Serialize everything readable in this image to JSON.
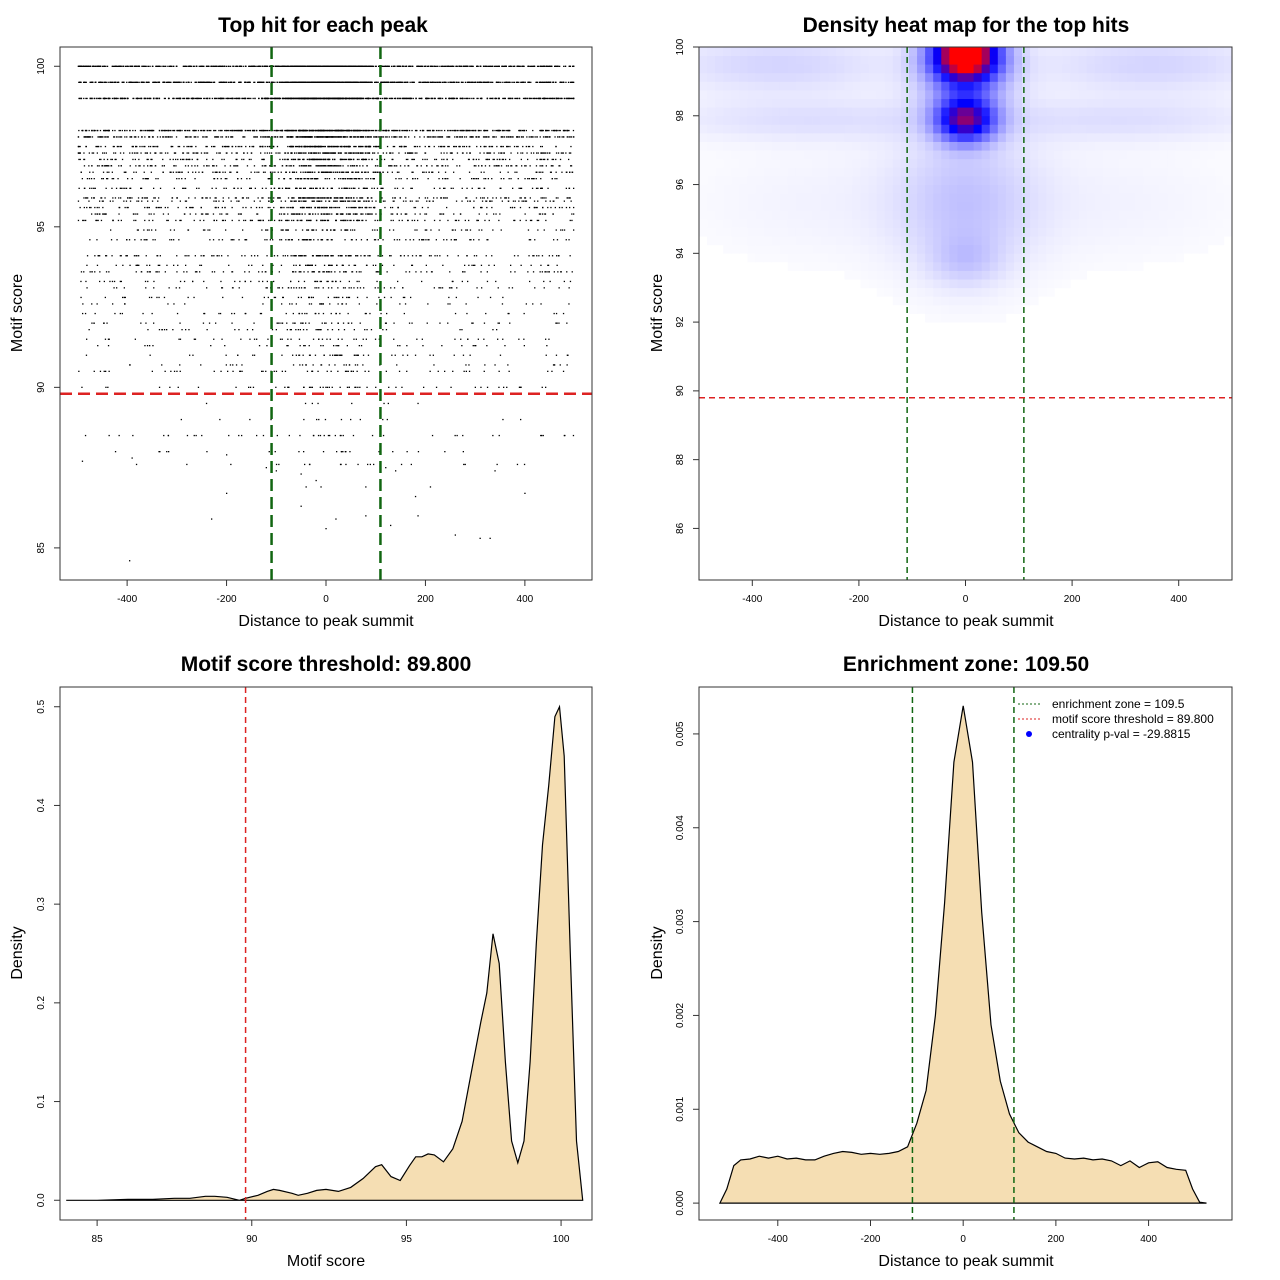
{
  "colors": {
    "threshold": "#dd2222",
    "zone": "#116611",
    "fill": "#f5deb3",
    "axis": "#333333",
    "point": "#000000",
    "heat_low": "#ffffff",
    "heat_mid": "#0000ff",
    "heat_high": "#ff0000",
    "legend_dot": "#0000ff"
  },
  "chart_data": [
    {
      "id": "scatter",
      "type": "scatter",
      "title": "Top hit for each peak",
      "xlabel": "Distance to peak summit",
      "ylabel": "Motif score",
      "xlim": [
        -535,
        535
      ],
      "ylim": [
        84,
        100.6
      ],
      "xticks": [
        -400,
        -200,
        0,
        200,
        400
      ],
      "yticks": [
        85,
        90,
        95,
        100
      ],
      "threshold": 89.8,
      "zone": [
        -109.5,
        109.5
      ],
      "rows": [
        {
          "y": 100.0,
          "n": 900,
          "spread": 500
        },
        {
          "y": 99.5,
          "n": 850,
          "spread": 500
        },
        {
          "y": 99.0,
          "n": 800,
          "spread": 500
        },
        {
          "y": 98.0,
          "n": 600,
          "spread": 500
        },
        {
          "y": 97.8,
          "n": 450,
          "spread": 500
        },
        {
          "y": 97.5,
          "n": 300,
          "spread": 500
        },
        {
          "y": 97.3,
          "n": 250,
          "spread": 500
        },
        {
          "y": 97.1,
          "n": 200,
          "spread": 500
        },
        {
          "y": 96.9,
          "n": 220,
          "spread": 500
        },
        {
          "y": 96.7,
          "n": 180,
          "spread": 500
        },
        {
          "y": 96.5,
          "n": 150,
          "spread": 500
        },
        {
          "y": 96.2,
          "n": 140,
          "spread": 500
        },
        {
          "y": 95.9,
          "n": 200,
          "spread": 500
        },
        {
          "y": 95.8,
          "n": 150,
          "spread": 500
        },
        {
          "y": 95.6,
          "n": 160,
          "spread": 500
        },
        {
          "y": 95.4,
          "n": 150,
          "spread": 500
        },
        {
          "y": 95.2,
          "n": 140,
          "spread": 500
        },
        {
          "y": 94.9,
          "n": 90,
          "spread": 500
        },
        {
          "y": 94.6,
          "n": 110,
          "spread": 500
        },
        {
          "y": 94.1,
          "n": 150,
          "spread": 500
        },
        {
          "y": 93.8,
          "n": 80,
          "spread": 500
        },
        {
          "y": 93.6,
          "n": 110,
          "spread": 500
        },
        {
          "y": 93.3,
          "n": 60,
          "spread": 500
        },
        {
          "y": 93.1,
          "n": 70,
          "spread": 500
        },
        {
          "y": 92.8,
          "n": 50,
          "spread": 500
        },
        {
          "y": 92.6,
          "n": 40,
          "spread": 500
        },
        {
          "y": 92.3,
          "n": 50,
          "spread": 500
        },
        {
          "y": 92.0,
          "n": 60,
          "spread": 500
        },
        {
          "y": 91.8,
          "n": 45,
          "spread": 500
        },
        {
          "y": 91.5,
          "n": 50,
          "spread": 500
        },
        {
          "y": 91.3,
          "n": 40,
          "spread": 500
        },
        {
          "y": 91.0,
          "n": 55,
          "spread": 500
        },
        {
          "y": 90.7,
          "n": 40,
          "spread": 500
        },
        {
          "y": 90.5,
          "n": 60,
          "spread": 500
        },
        {
          "y": 90.0,
          "n": 55,
          "spread": 500
        },
        {
          "y": 89.5,
          "n": 8,
          "spread": 300
        },
        {
          "y": 89.0,
          "n": 15,
          "spread": 450
        },
        {
          "y": 88.5,
          "n": 45,
          "spread": 500
        },
        {
          "y": 88.0,
          "n": 25,
          "spread": 450
        },
        {
          "y": 87.6,
          "n": 18,
          "spread": 400
        }
      ],
      "points": [
        {
          "x": -490,
          "y": 87.7
        },
        {
          "x": -390,
          "y": 87.8
        },
        {
          "x": -280,
          "y": 87.6
        },
        {
          "x": -200,
          "y": 87.9
        },
        {
          "x": -120,
          "y": 87.5
        },
        {
          "x": -100,
          "y": 87.4
        },
        {
          "x": -95,
          "y": 87.6
        },
        {
          "x": -50,
          "y": 87.3
        },
        {
          "x": 40,
          "y": 87.6
        },
        {
          "x": 120,
          "y": 87.5
        },
        {
          "x": 140,
          "y": 87.4
        },
        {
          "x": 280,
          "y": 87.6
        },
        {
          "x": 340,
          "y": 87.4
        },
        {
          "x": -40,
          "y": 86.9
        },
        {
          "x": -20,
          "y": 87.1
        },
        {
          "x": -10,
          "y": 86.9
        },
        {
          "x": 80,
          "y": 86.9
        },
        {
          "x": 210,
          "y": 86.9
        },
        {
          "x": -200,
          "y": 86.7
        },
        {
          "x": 400,
          "y": 86.7
        },
        {
          "x": 180,
          "y": 86.6
        },
        {
          "x": -50,
          "y": 86.3
        },
        {
          "x": 20,
          "y": 85.9
        },
        {
          "x": 80,
          "y": 86.0
        },
        {
          "x": -230,
          "y": 85.9
        },
        {
          "x": 185,
          "y": 86.0
        },
        {
          "x": 130,
          "y": 85.7
        },
        {
          "x": 260,
          "y": 85.4
        },
        {
          "x": 310,
          "y": 85.3
        },
        {
          "x": 330,
          "y": 85.3
        },
        {
          "x": 0,
          "y": 85.6
        },
        {
          "x": -395,
          "y": 84.6
        }
      ]
    },
    {
      "id": "heatmap",
      "type": "heatmap",
      "title": "Density heat map for the top hits",
      "xlabel": "Distance to peak summit",
      "ylabel": "Motif score",
      "xlim": [
        -500,
        500
      ],
      "ylim": [
        84.5,
        100
      ],
      "xticks": [
        -400,
        -200,
        0,
        200,
        400
      ],
      "yticks": [
        86,
        88,
        90,
        92,
        94,
        96,
        98,
        100
      ],
      "threshold": 89.8,
      "zone": [
        -109.5,
        109.5
      ],
      "blobs": [
        {
          "x": 0,
          "y": 99.8,
          "sx": 42,
          "sy": 0.55,
          "w": 1.0
        },
        {
          "x": 0,
          "y": 97.9,
          "sx": 38,
          "sy": 0.45,
          "w": 0.68
        },
        {
          "x": 0,
          "y": 99.4,
          "sx": 60,
          "sy": 0.9,
          "w": 0.25
        },
        {
          "x": 0,
          "y": 95.5,
          "sx": 90,
          "sy": 1.6,
          "w": 0.12
        },
        {
          "x": 0,
          "y": 93.8,
          "sx": 45,
          "sy": 0.5,
          "w": 0.08
        },
        {
          "x": -350,
          "y": 99.5,
          "sx": 160,
          "sy": 0.6,
          "w": 0.1
        },
        {
          "x": 350,
          "y": 99.5,
          "sx": 160,
          "sy": 0.6,
          "w": 0.1
        },
        {
          "x": -300,
          "y": 97.9,
          "sx": 200,
          "sy": 0.45,
          "w": 0.07
        },
        {
          "x": 300,
          "y": 97.9,
          "sx": 200,
          "sy": 0.45,
          "w": 0.07
        },
        {
          "x": -250,
          "y": 95.5,
          "sx": 200,
          "sy": 1.3,
          "w": 0.03
        },
        {
          "x": 250,
          "y": 95.5,
          "sx": 200,
          "sy": 1.3,
          "w": 0.03
        }
      ]
    },
    {
      "id": "score-density",
      "type": "area",
      "title": "Motif score threshold: 89.800",
      "xlabel": "Motif score",
      "ylabel": "Density",
      "xlim": [
        83.8,
        101.0
      ],
      "ylim": [
        -0.02,
        0.52
      ],
      "xticks": [
        85,
        90,
        95,
        100
      ],
      "yticks": [
        0.0,
        0.1,
        0.2,
        0.3,
        0.4,
        0.5
      ],
      "ytick_labels": [
        "0.0",
        "0.1",
        "0.2",
        "0.3",
        "0.4",
        "0.5"
      ],
      "threshold": 89.8,
      "x": [
        84.0,
        85.0,
        86.0,
        86.8,
        87.5,
        88.0,
        88.5,
        88.8,
        89.2,
        89.6,
        89.8,
        90.2,
        90.5,
        90.7,
        90.9,
        91.3,
        91.5,
        91.8,
        92.1,
        92.4,
        92.8,
        93.2,
        93.6,
        94.0,
        94.2,
        94.5,
        94.8,
        95.1,
        95.3,
        95.5,
        95.7,
        95.9,
        96.2,
        96.5,
        96.8,
        97.1,
        97.4,
        97.6,
        97.8,
        98.0,
        98.2,
        98.4,
        98.6,
        98.8,
        99.0,
        99.2,
        99.4,
        99.6,
        99.8,
        99.95,
        100.1,
        100.3,
        100.5,
        100.7
      ],
      "y": [
        0.0,
        0.0,
        0.001,
        0.001,
        0.002,
        0.002,
        0.004,
        0.004,
        0.003,
        0.0,
        0.002,
        0.005,
        0.009,
        0.011,
        0.01,
        0.007,
        0.005,
        0.007,
        0.01,
        0.011,
        0.009,
        0.013,
        0.022,
        0.034,
        0.036,
        0.024,
        0.02,
        0.035,
        0.044,
        0.044,
        0.047,
        0.046,
        0.039,
        0.052,
        0.08,
        0.13,
        0.18,
        0.21,
        0.27,
        0.24,
        0.14,
        0.06,
        0.038,
        0.06,
        0.14,
        0.26,
        0.36,
        0.42,
        0.49,
        0.5,
        0.45,
        0.25,
        0.06,
        0.0
      ]
    },
    {
      "id": "distance-density",
      "type": "area",
      "title": "Enrichment zone: 109.50",
      "xlabel": "Distance to peak summit",
      "ylabel": "Density",
      "xlim": [
        -570,
        580
      ],
      "ylim": [
        -0.00018,
        0.0055
      ],
      "xticks": [
        -400,
        -200,
        0,
        200,
        400
      ],
      "yticks": [
        0.0,
        0.001,
        0.002,
        0.003,
        0.004,
        0.005
      ],
      "ytick_labels": [
        "0.000",
        "0.001",
        "0.002",
        "0.003",
        "0.004",
        "0.005"
      ],
      "zone": [
        -109.5,
        109.5
      ],
      "x": [
        -525,
        -510,
        -495,
        -480,
        -460,
        -440,
        -420,
        -400,
        -380,
        -360,
        -340,
        -320,
        -300,
        -280,
        -260,
        -240,
        -220,
        -200,
        -180,
        -160,
        -140,
        -120,
        -100,
        -80,
        -60,
        -40,
        -20,
        0,
        20,
        40,
        60,
        80,
        100,
        120,
        140,
        160,
        180,
        200,
        220,
        240,
        260,
        280,
        300,
        320,
        340,
        360,
        380,
        400,
        420,
        440,
        460,
        480,
        495,
        510,
        525
      ],
      "y": [
        0.0,
        0.00015,
        0.0004,
        0.00046,
        0.00047,
        0.0005,
        0.00048,
        0.0005,
        0.00047,
        0.00048,
        0.00046,
        0.00046,
        0.0005,
        0.00053,
        0.00055,
        0.00054,
        0.00052,
        0.00053,
        0.00052,
        0.00053,
        0.00055,
        0.0006,
        0.00085,
        0.0012,
        0.002,
        0.0032,
        0.0047,
        0.0053,
        0.0047,
        0.0031,
        0.0019,
        0.0013,
        0.00095,
        0.00075,
        0.00065,
        0.0006,
        0.00055,
        0.00053,
        0.00048,
        0.00047,
        0.00048,
        0.00046,
        0.00047,
        0.00045,
        0.0004,
        0.00045,
        0.00038,
        0.00043,
        0.00044,
        0.00038,
        0.00036,
        0.00035,
        0.00015,
        1e-05,
        0.0
      ],
      "legend": [
        {
          "label": "enrichment zone = 109.5",
          "kind": "zone"
        },
        {
          "label": "motif score threshold = 89.800",
          "kind": "threshold"
        },
        {
          "label": "centrality p-val = -29.8815",
          "kind": "dot"
        }
      ]
    }
  ]
}
